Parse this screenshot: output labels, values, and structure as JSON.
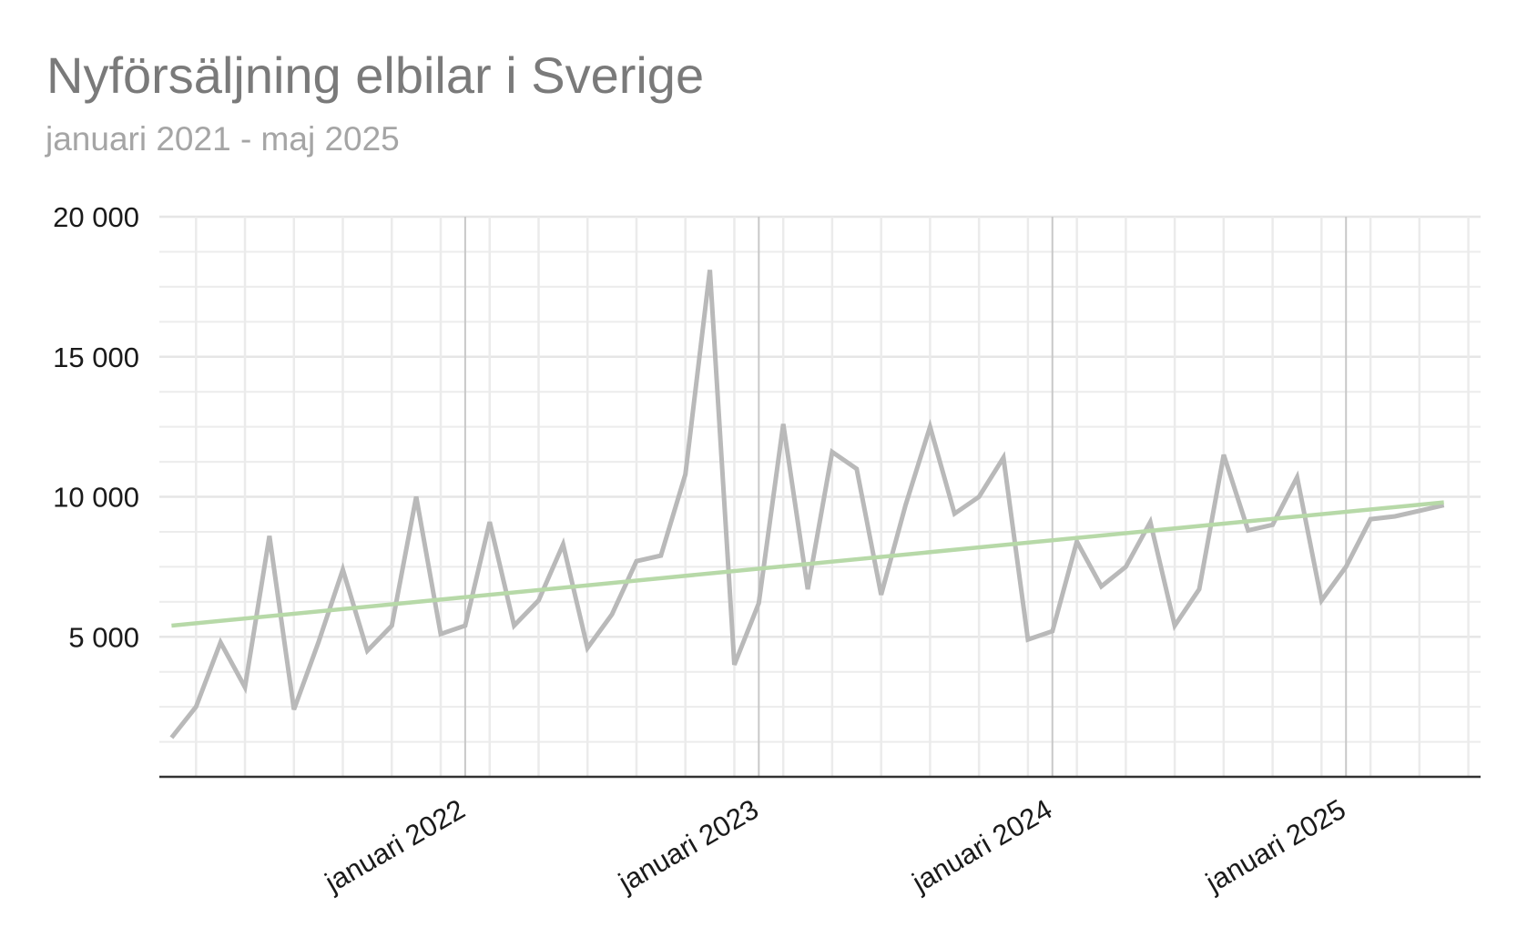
{
  "chart_data": {
    "type": "line",
    "title": "Nyförsäljning elbilar i Sverige",
    "subtitle": "januari 2021 - maj 2025",
    "x_start": "2021-01",
    "x_end": "2025-05",
    "ylim": [
      0,
      20000
    ],
    "y_ticks": [
      5000,
      10000,
      15000,
      20000
    ],
    "y_tick_labels": [
      "5 000",
      "10 000",
      "15 000",
      "20 000"
    ],
    "x_tick_dates": [
      "2022-01",
      "2023-01",
      "2024-01",
      "2025-01"
    ],
    "x_tick_labels": [
      "januari 2022",
      "januari 2023",
      "januari 2024",
      "januari 2025"
    ],
    "grid": true,
    "series": [
      {
        "color": "#b9b9b9",
        "x": [
          "2021-01",
          "2021-02",
          "2021-03",
          "2021-04",
          "2021-05",
          "2021-06",
          "2021-07",
          "2021-08",
          "2021-09",
          "2021-10",
          "2021-11",
          "2021-12",
          "2022-01",
          "2022-02",
          "2022-03",
          "2022-04",
          "2022-05",
          "2022-06",
          "2022-07",
          "2022-08",
          "2022-09",
          "2022-10",
          "2022-11",
          "2022-12",
          "2023-01",
          "2023-02",
          "2023-03",
          "2023-04",
          "2023-05",
          "2023-06",
          "2023-07",
          "2023-08",
          "2023-09",
          "2023-10",
          "2023-11",
          "2023-12",
          "2024-01",
          "2024-02",
          "2024-03",
          "2024-04",
          "2024-05",
          "2024-06",
          "2024-07",
          "2024-08",
          "2024-09",
          "2024-10",
          "2024-11",
          "2024-12",
          "2025-01",
          "2025-02",
          "2025-03",
          "2025-04",
          "2025-05"
        ],
        "values": [
          1400,
          2500,
          4800,
          3200,
          8600,
          2400,
          4800,
          7400,
          4500,
          5400,
          10000,
          5100,
          5400,
          9100,
          5400,
          6300,
          8300,
          4600,
          5800,
          7700,
          7900,
          10800,
          18100,
          4000,
          6200,
          12600,
          6700,
          11600,
          11000,
          6500,
          9700,
          12500,
          9400,
          10000,
          11400,
          4900,
          5200,
          8400,
          6800,
          7500,
          9100,
          5400,
          6700,
          11500,
          8800,
          9000,
          10700,
          6300,
          7500,
          9200,
          9300,
          9500,
          9700
        ]
      },
      {
        "color": "#b7d9a8",
        "x": [
          "2021-01",
          "2025-05"
        ],
        "values": [
          5400,
          9800
        ]
      }
    ]
  }
}
